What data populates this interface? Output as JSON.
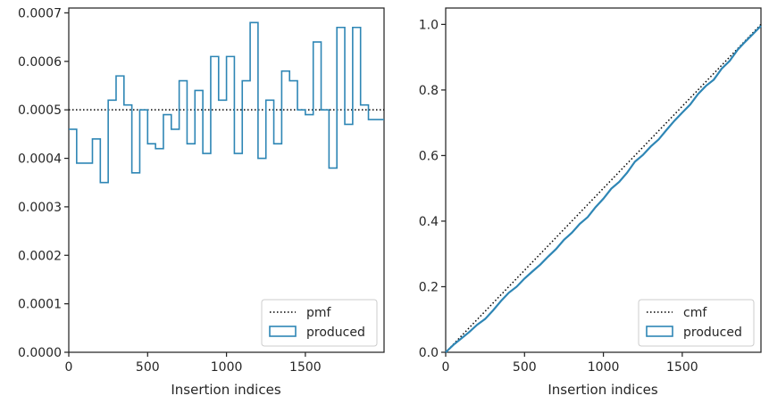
{
  "chart_data": [
    {
      "type": "histogram-step",
      "xlabel": "Insertion indices",
      "ylabel": "",
      "xlim": [
        0,
        1999
      ],
      "ylim": [
        0,
        0.00071
      ],
      "xticks": [
        0,
        500,
        1000,
        1500
      ],
      "xtick_labels": [
        "0",
        "500",
        "1000",
        "1500"
      ],
      "yticks": [
        0,
        0.0001,
        0.0002,
        0.0003,
        0.0004,
        0.0005,
        0.0006,
        0.0007
      ],
      "ytick_labels": [
        "0.0000",
        "0.0001",
        "0.0002",
        "0.0003",
        "0.0004",
        "0.0005",
        "0.0006",
        "0.0007"
      ],
      "legend_position": "lower-right",
      "reference": {
        "name": "pmf",
        "value": 0.0005,
        "style": "dotted",
        "color": "#000000"
      },
      "series": [
        {
          "name": "produced",
          "color": "#2e86b5",
          "bin_edges": [
            0,
            50,
            100,
            150,
            200,
            250,
            300,
            350,
            400,
            450,
            500,
            550,
            600,
            650,
            700,
            750,
            800,
            850,
            900,
            950,
            1000,
            1050,
            1100,
            1150,
            1200,
            1250,
            1300,
            1350,
            1400,
            1450,
            1500,
            1550,
            1600,
            1650,
            1700,
            1750,
            1800,
            1850,
            1900,
            1950,
            2000
          ],
          "values": [
            0.00046,
            0.00039,
            0.00039,
            0.00044,
            0.00035,
            0.00052,
            0.00057,
            0.00051,
            0.00037,
            0.0005,
            0.00043,
            0.00042,
            0.00049,
            0.00046,
            0.00056,
            0.00043,
            0.00054,
            0.00041,
            0.00061,
            0.00052,
            0.00061,
            0.00041,
            0.00056,
            0.00068,
            0.0004,
            0.00052,
            0.00043,
            0.00058,
            0.00056,
            0.0005,
            0.00049,
            0.00064,
            0.0005,
            0.00038,
            0.00067,
            0.00047,
            0.00067,
            0.00051,
            0.00048,
            0.00048
          ]
        }
      ]
    },
    {
      "type": "line",
      "xlabel": "Insertion indices",
      "ylabel": "",
      "xlim": [
        0,
        1999
      ],
      "ylim": [
        0,
        1.05
      ],
      "xticks": [
        0,
        500,
        1000,
        1500
      ],
      "xtick_labels": [
        "0",
        "500",
        "1000",
        "1500"
      ],
      "yticks": [
        0,
        0.2,
        0.4,
        0.6,
        0.8,
        1.0
      ],
      "ytick_labels": [
        "0.0",
        "0.2",
        "0.4",
        "0.6",
        "0.8",
        "1.0"
      ],
      "legend_position": "lower-right",
      "reference": {
        "name": "cmf",
        "x": [
          0,
          1999
        ],
        "y": [
          0,
          1.0
        ],
        "style": "dotted",
        "color": "#000000"
      },
      "series": [
        {
          "name": "produced",
          "color": "#2e86b5",
          "x": [
            0,
            50,
            100,
            150,
            200,
            250,
            300,
            350,
            400,
            450,
            500,
            550,
            600,
            650,
            700,
            750,
            800,
            850,
            900,
            950,
            1000,
            1050,
            1100,
            1150,
            1200,
            1250,
            1300,
            1350,
            1400,
            1450,
            1500,
            1550,
            1600,
            1650,
            1700,
            1750,
            1800,
            1850,
            1900,
            1950,
            2000
          ],
          "y": [
            0,
            0.023,
            0.0425,
            0.062,
            0.084,
            0.1015,
            0.1275,
            0.156,
            0.1815,
            0.2,
            0.225,
            0.2465,
            0.2675,
            0.292,
            0.315,
            0.343,
            0.3645,
            0.3915,
            0.412,
            0.4425,
            0.4685,
            0.499,
            0.5195,
            0.5475,
            0.5815,
            0.6015,
            0.6275,
            0.649,
            0.678,
            0.706,
            0.731,
            0.7555,
            0.7875,
            0.8125,
            0.8315,
            0.865,
            0.8885,
            0.922,
            0.9475,
            0.9715,
            0.9955
          ]
        }
      ]
    }
  ]
}
